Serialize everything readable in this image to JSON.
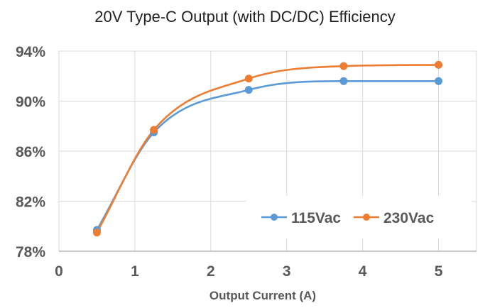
{
  "chart_data": {
    "type": "line",
    "title": "20V Type-C Output (with DC/DC) Efficiency",
    "xlabel": "Output Current (A)",
    "ylabel": "",
    "xlim": [
      0,
      5.5
    ],
    "ylim": [
      78,
      94
    ],
    "x_ticks": [
      0,
      1,
      2,
      3,
      4,
      5
    ],
    "x_tick_labels": [
      "0",
      "1",
      "2",
      "3",
      "4",
      "5"
    ],
    "y_ticks": [
      78,
      82,
      86,
      90,
      94
    ],
    "y_tick_labels": [
      "78%",
      "82%",
      "86%",
      "90%",
      "94%"
    ],
    "grid": true,
    "smooth": true,
    "legend_position": "bottom-right",
    "series": [
      {
        "name": "115Vac",
        "color": "#5B9BD5",
        "x": [
          0.5,
          1.25,
          2.5,
          3.75,
          5
        ],
        "y": [
          79.7,
          87.5,
          90.9,
          91.6,
          91.6
        ]
      },
      {
        "name": "230Vac",
        "color": "#ED7D31",
        "x": [
          0.5,
          1.25,
          2.5,
          3.75,
          5
        ],
        "y": [
          79.5,
          87.7,
          91.8,
          92.8,
          92.9
        ]
      }
    ]
  }
}
